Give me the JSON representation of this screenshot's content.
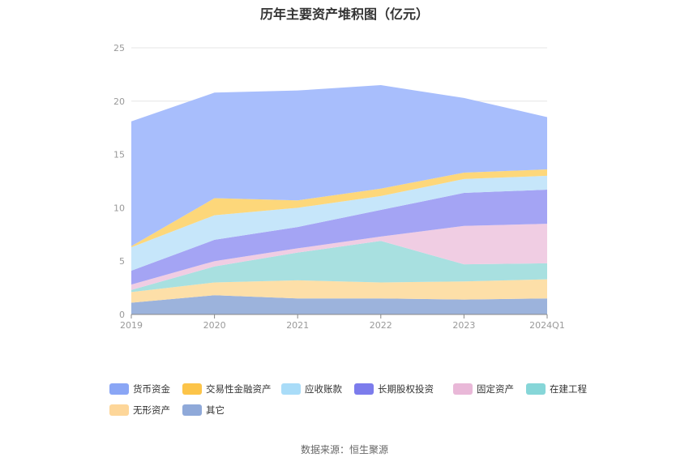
{
  "page": {
    "title": "历年主要资产堆积图（亿元）",
    "source": "数据来源：恒生聚源"
  },
  "chart_data": {
    "type": "area",
    "stacked": true,
    "categories": [
      "2019",
      "2020",
      "2021",
      "2022",
      "2023",
      "2024Q1"
    ],
    "ylim": [
      0,
      25
    ],
    "yticks": [
      0,
      5,
      10,
      15,
      20,
      25
    ],
    "grid": true,
    "legend_position": "bottom",
    "series": [
      {
        "name": "其它",
        "color": "#9cb3dc",
        "values": [
          1.1,
          1.8,
          1.5,
          1.5,
          1.4,
          1.5
        ]
      },
      {
        "name": "无形资产",
        "color": "#fddfa8",
        "values": [
          1.0,
          1.2,
          1.7,
          1.5,
          1.7,
          1.8
        ]
      },
      {
        "name": "在建工程",
        "color": "#a8e0e0",
        "values": [
          0.2,
          1.5,
          2.6,
          3.9,
          1.6,
          1.5
        ]
      },
      {
        "name": "固定资产",
        "color": "#f0cde3",
        "values": [
          0.5,
          0.5,
          0.4,
          0.4,
          3.6,
          3.7
        ]
      },
      {
        "name": "长期股权投资",
        "color": "#a4a4f4",
        "values": [
          1.3,
          2.0,
          2.0,
          2.5,
          3.1,
          3.2
        ]
      },
      {
        "name": "应收账款",
        "color": "#c6e6fa",
        "values": [
          2.2,
          2.3,
          1.8,
          1.3,
          1.3,
          1.3
        ]
      },
      {
        "name": "交易性金融资产",
        "color": "#fdd77a",
        "values": [
          0.1,
          1.6,
          0.7,
          0.7,
          0.6,
          0.6
        ]
      },
      {
        "name": "货币资金",
        "color": "#a8befc",
        "values": [
          11.7,
          9.9,
          10.3,
          9.7,
          7.0,
          4.9
        ]
      }
    ],
    "legend_order": [
      "货币资金",
      "交易性金融资产",
      "应收账款",
      "长期股权投资",
      "固定资产",
      "在建工程",
      "无形资产",
      "其它"
    ],
    "legend_colors": {
      "货币资金": "#8aa6f5",
      "交易性金融资产": "#fcc449",
      "应收账款": "#a9dcf8",
      "长期股权投资": "#7c7cec",
      "固定资产": "#e9b8d8",
      "在建工程": "#86d6d8",
      "无形资产": "#fdd699",
      "其它": "#8fa9d9"
    }
  }
}
